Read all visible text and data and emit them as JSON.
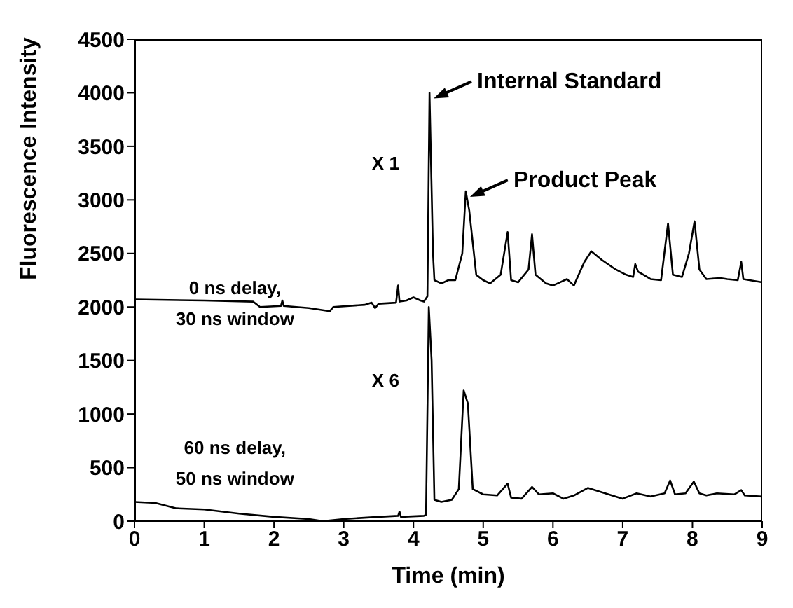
{
  "chart_data": {
    "type": "line",
    "xlabel": "Time (min)",
    "ylabel": "Fluorescence Intensity",
    "xlim": [
      0,
      9
    ],
    "xticks": [
      0,
      1,
      2,
      3,
      4,
      5,
      6,
      7,
      8,
      9
    ],
    "ylim": [
      0,
      4500
    ],
    "yticks": [
      0,
      500,
      1000,
      1500,
      2000,
      2500,
      3000,
      3500,
      4000,
      4500
    ],
    "grid": false,
    "legend": false,
    "marker": "none",
    "line_style": "solid",
    "series": [
      {
        "color": "#000000",
        "x": [
          0,
          1,
          1.7,
          1.8,
          2.1,
          2.12,
          2.14,
          2.5,
          2.8,
          2.85,
          3.3,
          3.4,
          3.45,
          3.5,
          3.75,
          3.78,
          3.8,
          3.9,
          4.0,
          4.1,
          4.15,
          4.2,
          4.23,
          4.28,
          4.3,
          4.4,
          4.5,
          4.6,
          4.7,
          4.75,
          4.8,
          4.9,
          5.0,
          5.1,
          5.25,
          5.35,
          5.4,
          5.5,
          5.65,
          5.7,
          5.75,
          5.9,
          6.0,
          6.1,
          6.2,
          6.3,
          6.45,
          6.55,
          6.7,
          6.9,
          7.05,
          7.15,
          7.18,
          7.22,
          7.3,
          7.4,
          7.55,
          7.65,
          7.72,
          7.85,
          7.95,
          8.03,
          8.1,
          8.2,
          8.4,
          8.5,
          8.65,
          8.7,
          8.73,
          9
        ],
        "values": [
          2070,
          2060,
          2050,
          2000,
          2010,
          2060,
          2010,
          1990,
          1960,
          2000,
          2020,
          2040,
          1990,
          2030,
          2040,
          2200,
          2050,
          2060,
          2090,
          2060,
          2050,
          2100,
          4000,
          2500,
          2250,
          2220,
          2250,
          2250,
          2500,
          3080,
          2900,
          2300,
          2250,
          2220,
          2300,
          2700,
          2250,
          2230,
          2350,
          2680,
          2300,
          2220,
          2200,
          2230,
          2260,
          2200,
          2420,
          2520,
          2440,
          2350,
          2300,
          2280,
          2400,
          2330,
          2300,
          2260,
          2250,
          2780,
          2300,
          2280,
          2500,
          2800,
          2350,
          2260,
          2270,
          2260,
          2250,
          2420,
          2260,
          2230
        ]
      },
      {
        "color": "#000000",
        "x": [
          0,
          0.3,
          0.6,
          1.0,
          1.5,
          2.0,
          2.5,
          2.7,
          3.0,
          3.5,
          3.78,
          3.8,
          3.82,
          4.15,
          4.18,
          4.22,
          4.26,
          4.3,
          4.4,
          4.55,
          4.65,
          4.72,
          4.78,
          4.85,
          5.0,
          5.2,
          5.35,
          5.4,
          5.55,
          5.7,
          5.8,
          6.0,
          6.15,
          6.3,
          6.5,
          6.75,
          7.0,
          7.2,
          7.4,
          7.6,
          7.68,
          7.75,
          7.9,
          8.02,
          8.1,
          8.2,
          8.35,
          8.6,
          8.7,
          8.75,
          9
        ],
        "values": [
          180,
          170,
          120,
          110,
          70,
          40,
          20,
          0,
          20,
          40,
          50,
          90,
          40,
          50,
          60,
          2000,
          1500,
          200,
          180,
          200,
          300,
          1220,
          1100,
          300,
          250,
          240,
          350,
          220,
          210,
          320,
          250,
          260,
          210,
          240,
          310,
          260,
          210,
          260,
          230,
          260,
          380,
          250,
          260,
          370,
          260,
          240,
          260,
          250,
          290,
          240,
          230
        ]
      }
    ],
    "annotations": [
      {
        "text": "Internal Standard",
        "x": 4.23,
        "y": 4000
      },
      {
        "text": "Product Peak",
        "x": 4.75,
        "y": 3080
      },
      "X 1",
      "X 6",
      "0 ns delay,\n30 ns window",
      "60 ns delay,\n50 ns window"
    ]
  }
}
